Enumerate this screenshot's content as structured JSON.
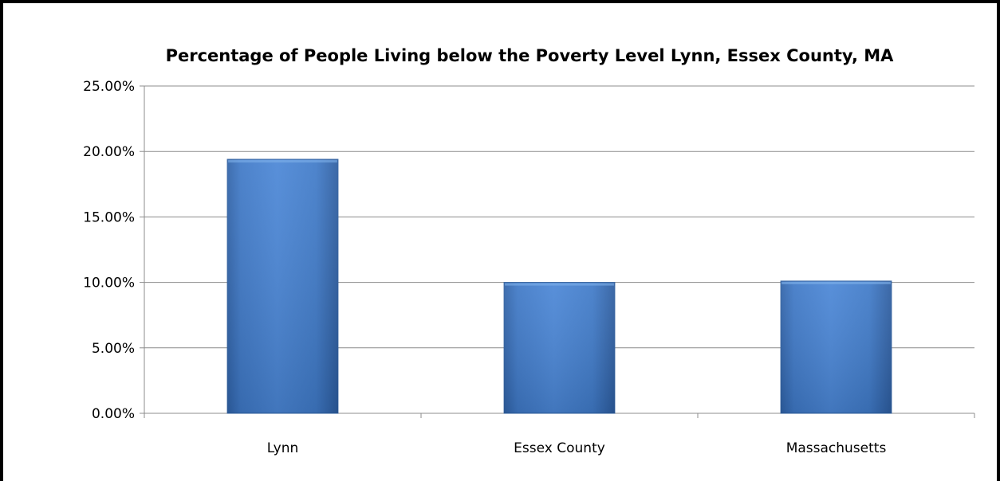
{
  "chart_data": {
    "type": "bar",
    "title": "Percentage of People Living below the Poverty Level Lynn, Essex County, MA",
    "xlabel": "",
    "ylabel": "",
    "categories": [
      "Lynn",
      "Essex County",
      "Massachusetts"
    ],
    "values": [
      19.4,
      10.0,
      10.1
    ],
    "ylim": [
      0,
      25
    ],
    "yticks": [
      0,
      5,
      10,
      15,
      20,
      25
    ],
    "ytick_labels": [
      "0.00%",
      "5.00%",
      "10.00%",
      "15.00%",
      "20.00%",
      "25.00%"
    ],
    "grid": true,
    "legend": "none",
    "colors": {
      "bar": "#4a86d2",
      "bar_edge": "#2f5f9e",
      "grid": "#8c8c8c"
    }
  }
}
